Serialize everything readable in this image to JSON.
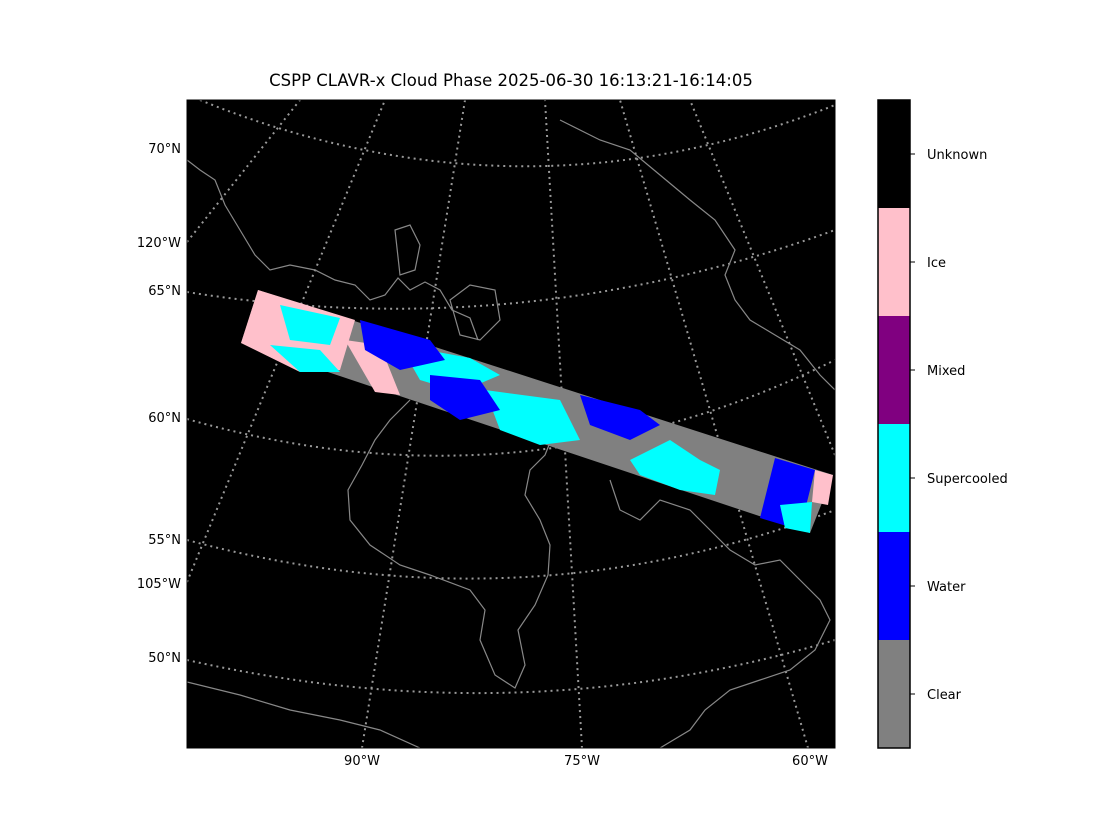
{
  "title": "CSPP CLAVR-x Cloud Phase 2025-06-30 16:13:21-16:14:05",
  "map": {
    "background": "#000000",
    "coastline_color": "#888888",
    "gridline_color": "#999999",
    "lat_labels": [
      "70°N",
      "65°N",
      "60°N",
      "55°N",
      "50°N"
    ],
    "lon_labels_left": [
      "120°W",
      "105°W"
    ],
    "lon_labels_bottom": [
      "90°W",
      "75°W",
      "60°W"
    ]
  },
  "colorbar": {
    "classes": [
      {
        "label": "Unknown",
        "color": "#000000"
      },
      {
        "label": "Ice",
        "color": "#ffc0cb"
      },
      {
        "label": "Mixed",
        "color": "#800080"
      },
      {
        "label": "Supercooled",
        "color": "#00ffff"
      },
      {
        "label": "Water",
        "color": "#0000ff"
      },
      {
        "label": "Clear",
        "color": "#808080"
      }
    ]
  }
}
